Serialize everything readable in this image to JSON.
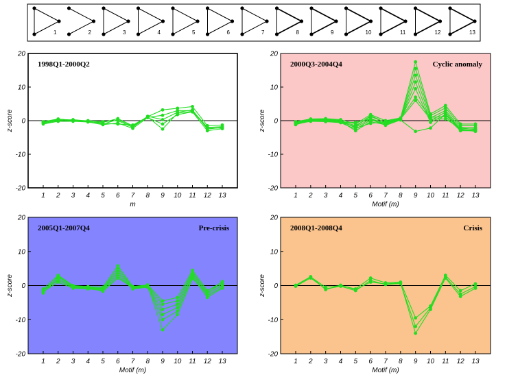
{
  "motifs": [
    "1",
    "2",
    "3",
    "4",
    "5",
    "6",
    "7",
    "8",
    "9",
    "10",
    "11",
    "12",
    "13"
  ],
  "chart_data": [
    {
      "type": "line",
      "title": "1998Q1-2000Q2",
      "subtitle": "",
      "background": "#ffffff",
      "line_color": "#22dd22",
      "xlabel": "m",
      "ylabel": "z-score",
      "ylim": [
        -20,
        20
      ],
      "yticks": [
        -20,
        -10,
        0,
        10,
        20
      ],
      "categories": [
        "1",
        "2",
        "3",
        "4",
        "5",
        "6",
        "7",
        "8",
        "9",
        "10",
        "11",
        "12",
        "13"
      ],
      "series": [
        {
          "values": [
            -0.5,
            0.4,
            0.2,
            -0.3,
            -0.5,
            0.6,
            -1.5,
            1.2,
            3.2,
            3.7,
            4.2,
            -1.5,
            -1.3
          ]
        },
        {
          "values": [
            -0.8,
            0.0,
            0.3,
            -0.1,
            -1.0,
            0.3,
            -1.7,
            1.0,
            1.6,
            3.0,
            3.0,
            -2.0,
            -1.8
          ]
        },
        {
          "values": [
            -0.3,
            0.5,
            0.1,
            0.0,
            -0.3,
            0.0,
            -2.0,
            1.3,
            0.3,
            2.5,
            3.2,
            -2.5,
            -2.0
          ]
        },
        {
          "values": [
            -1.0,
            -0.2,
            -0.2,
            -0.4,
            -1.2,
            -0.7,
            -2.3,
            0.9,
            -1.0,
            1.8,
            2.6,
            -3.0,
            -2.4
          ]
        },
        {
          "values": [
            -0.6,
            0.2,
            0.0,
            -0.2,
            -0.8,
            -1.0,
            -1.3,
            1.1,
            -2.5,
            2.2,
            2.8,
            -2.2,
            -2.2
          ]
        }
      ]
    },
    {
      "type": "line",
      "title": "2000Q3-2004Q4",
      "subtitle": "Cyclic anomaly",
      "background": "#fbc7c7",
      "line_color": "#22dd22",
      "xlabel": "Motif (m)",
      "ylabel": "z-score",
      "ylim": [
        -20,
        20
      ],
      "yticks": [
        -20,
        -10,
        0,
        10,
        20
      ],
      "categories": [
        "1",
        "2",
        "3",
        "4",
        "5",
        "6",
        "7",
        "8",
        "9",
        "10",
        "11",
        "12",
        "13"
      ],
      "series": [
        {
          "values": [
            -0.3,
            0.5,
            0.6,
            0.3,
            -1.0,
            1.8,
            0.0,
            0.8,
            17.5,
            2.0,
            4.5,
            -1.0,
            -1.0
          ]
        },
        {
          "values": [
            -0.5,
            0.3,
            0.3,
            0.0,
            -1.5,
            1.2,
            -0.5,
            0.6,
            15.5,
            1.5,
            3.8,
            -1.5,
            -1.5
          ]
        },
        {
          "values": [
            -0.8,
            0.0,
            0.0,
            -0.3,
            -2.0,
            0.6,
            -0.8,
            0.4,
            13.5,
            0.8,
            3.0,
            -2.0,
            -2.0
          ]
        },
        {
          "values": [
            -1.0,
            -0.2,
            -0.3,
            -0.6,
            -2.5,
            0.2,
            -1.0,
            0.3,
            11.5,
            0.0,
            2.5,
            -2.5,
            -2.4
          ]
        },
        {
          "values": [
            -0.6,
            0.2,
            0.2,
            -0.2,
            -3.0,
            -0.3,
            -1.2,
            0.5,
            9.5,
            -0.5,
            1.8,
            -2.8,
            -2.8
          ]
        },
        {
          "values": [
            -0.4,
            0.4,
            0.4,
            0.1,
            -2.2,
            -0.8,
            -0.3,
            0.7,
            7.0,
            1.0,
            1.2,
            -3.0,
            -3.0
          ]
        },
        {
          "values": [
            -0.7,
            0.1,
            0.1,
            -0.4,
            -1.8,
            1.5,
            -0.6,
            0.5,
            6.0,
            0.5,
            0.5,
            -2.2,
            -2.6
          ]
        },
        {
          "values": [
            -1.2,
            0.0,
            -0.1,
            -0.5,
            -0.5,
            0.5,
            -1.4,
            0.2,
            -3.2,
            -2.2,
            2.0,
            -2.6,
            -3.2
          ]
        }
      ]
    },
    {
      "type": "line",
      "title": "2005Q1-2007Q4",
      "subtitle": "Pre-crisis",
      "background": "#8484ff",
      "line_color": "#22dd22",
      "xlabel": "Motif (m)",
      "ylabel": "z-score",
      "ylim": [
        -20,
        20
      ],
      "yticks": [
        -20,
        -10,
        0,
        10,
        20
      ],
      "categories": [
        "1",
        "2",
        "3",
        "4",
        "5",
        "6",
        "7",
        "8",
        "9",
        "10",
        "11",
        "12",
        "13"
      ],
      "series": [
        {
          "values": [
            -1.0,
            3.0,
            0.0,
            -0.3,
            -0.5,
            5.8,
            -0.3,
            0.2,
            -4.5,
            -3.5,
            4.5,
            -1.5,
            1.0
          ]
        },
        {
          "values": [
            -1.5,
            2.5,
            -0.2,
            -0.5,
            -0.8,
            5.0,
            -0.5,
            0.0,
            -5.5,
            -4.5,
            4.0,
            -2.0,
            0.5
          ]
        },
        {
          "values": [
            -2.0,
            2.0,
            -0.4,
            -0.6,
            -1.0,
            4.2,
            -0.7,
            -0.2,
            -7.0,
            -5.5,
            3.5,
            -2.5,
            0.0
          ]
        },
        {
          "values": [
            -1.2,
            1.5,
            -0.6,
            -0.8,
            -1.2,
            3.5,
            -0.9,
            -0.3,
            -8.5,
            -6.5,
            3.0,
            -3.0,
            -0.5
          ]
        },
        {
          "values": [
            -1.8,
            1.0,
            -0.8,
            -1.0,
            -1.5,
            2.8,
            -1.0,
            -0.5,
            -10.0,
            -7.5,
            2.5,
            -3.5,
            -0.8
          ]
        },
        {
          "values": [
            -2.2,
            2.8,
            -0.3,
            -0.4,
            -1.7,
            2.2,
            -0.6,
            0.1,
            -13.0,
            -8.5,
            2.0,
            -2.2,
            1.2
          ]
        }
      ]
    },
    {
      "type": "line",
      "title": "2008Q1-2008Q4",
      "subtitle": "Crisis",
      "background": "#fbc48e",
      "line_color": "#22dd22",
      "xlabel": "Motif (m)",
      "ylabel": "z-score",
      "ylim": [
        -20,
        20
      ],
      "yticks": [
        -20,
        -10,
        0,
        10,
        20
      ],
      "categories": [
        "1",
        "2",
        "3",
        "4",
        "5",
        "6",
        "7",
        "8",
        "9",
        "10",
        "11",
        "12",
        "13"
      ],
      "series": [
        {
          "values": [
            0.0,
            2.5,
            -0.5,
            0.0,
            -1.0,
            2.2,
            0.8,
            1.0,
            -9.5,
            -6.0,
            3.0,
            -1.5,
            0.5
          ]
        },
        {
          "values": [
            -0.2,
            2.2,
            -1.0,
            -0.2,
            -1.5,
            1.5,
            0.3,
            0.6,
            -12.0,
            -6.5,
            2.5,
            -2.5,
            -0.3
          ]
        },
        {
          "values": [
            0.1,
            2.6,
            -1.2,
            0.1,
            -1.2,
            1.0,
            0.5,
            0.8,
            -14.0,
            -7.0,
            2.2,
            -3.2,
            -0.8
          ]
        }
      ]
    }
  ]
}
